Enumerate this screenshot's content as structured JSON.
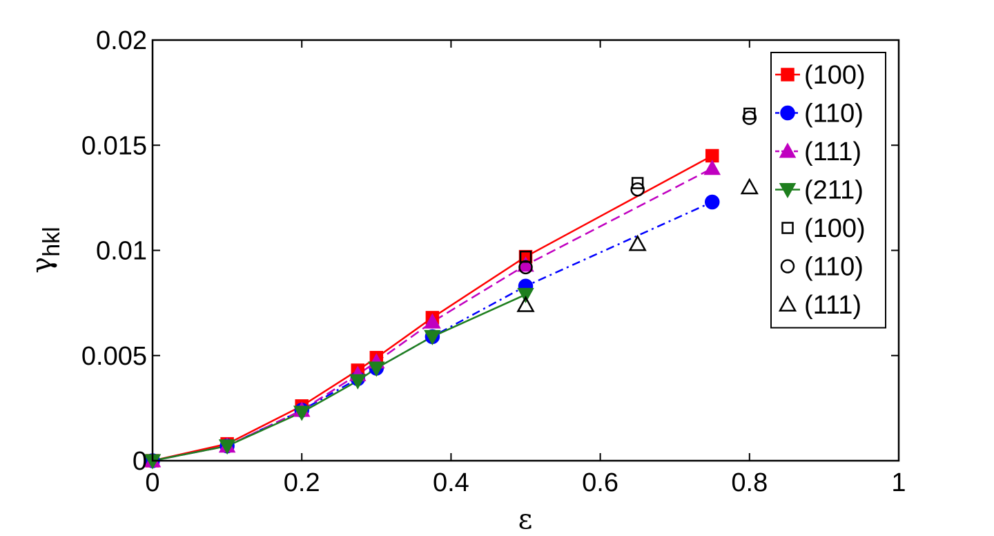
{
  "chart_data": {
    "type": "line",
    "title": "",
    "xlabel": "ε",
    "ylabel_main": "γ",
    "ylabel_sub": "hkl",
    "xlim": [
      0,
      1
    ],
    "ylim": [
      0,
      0.02
    ],
    "xticks": [
      0,
      0.2,
      0.4,
      0.6,
      0.8,
      1
    ],
    "xtick_labels": [
      "0",
      "0.2",
      "0.4",
      "0.6",
      "0.8",
      "1"
    ],
    "yticks": [
      0,
      0.005,
      0.01,
      0.015,
      0.02
    ],
    "ytick_labels": [
      "0",
      "0.005",
      "0.01",
      "0.015",
      "0.02"
    ],
    "grid": false,
    "legend_position": "top-right",
    "series": [
      {
        "name": "(100)",
        "color": "#ff0000",
        "line": "solid",
        "marker": "square",
        "filled": true,
        "x": [
          0,
          0.1,
          0.2,
          0.275,
          0.3,
          0.375,
          0.5,
          0.75
        ],
        "y": [
          0,
          0.0008,
          0.0026,
          0.0043,
          0.0049,
          0.0068,
          0.0097,
          0.0145
        ]
      },
      {
        "name": "(110)",
        "color": "#0000ff",
        "line": "dashdot",
        "marker": "circle",
        "filled": true,
        "x": [
          0,
          0.1,
          0.2,
          0.275,
          0.3,
          0.375,
          0.5,
          0.75
        ],
        "y": [
          0,
          0.0007,
          0.0024,
          0.0039,
          0.0044,
          0.0059,
          0.0083,
          0.0123
        ]
      },
      {
        "name": "(111)",
        "color": "#c000c0",
        "line": "dashed",
        "marker": "triangle-up",
        "filled": true,
        "x": [
          0,
          0.1,
          0.2,
          0.275,
          0.3,
          0.375,
          0.5,
          0.75
        ],
        "y": [
          0,
          0.0007,
          0.0024,
          0.0041,
          0.0047,
          0.0066,
          0.0093,
          0.0139
        ]
      },
      {
        "name": "(211)",
        "color": "#1e7f1e",
        "line": "solid",
        "marker": "triangle-down",
        "filled": true,
        "x": [
          0,
          0.1,
          0.2,
          0.275,
          0.3,
          0.375,
          0.5
        ],
        "y": [
          0,
          0.0007,
          0.0023,
          0.0038,
          0.0044,
          0.0059,
          0.0079
        ]
      },
      {
        "name": "(100)",
        "color": "#000000",
        "line": "none",
        "marker": "square",
        "filled": false,
        "x": [
          0.5,
          0.65,
          0.8
        ],
        "y": [
          0.0097,
          0.0132,
          0.0165
        ]
      },
      {
        "name": "(110)",
        "color": "#000000",
        "line": "none",
        "marker": "circle",
        "filled": false,
        "x": [
          0.5,
          0.65,
          0.8
        ],
        "y": [
          0.0092,
          0.0129,
          0.0163
        ]
      },
      {
        "name": "(111)",
        "color": "#000000",
        "line": "none",
        "marker": "triangle-up",
        "filled": false,
        "x": [
          0.5,
          0.65,
          0.8
        ],
        "y": [
          0.0074,
          0.0103,
          0.013
        ]
      }
    ]
  }
}
